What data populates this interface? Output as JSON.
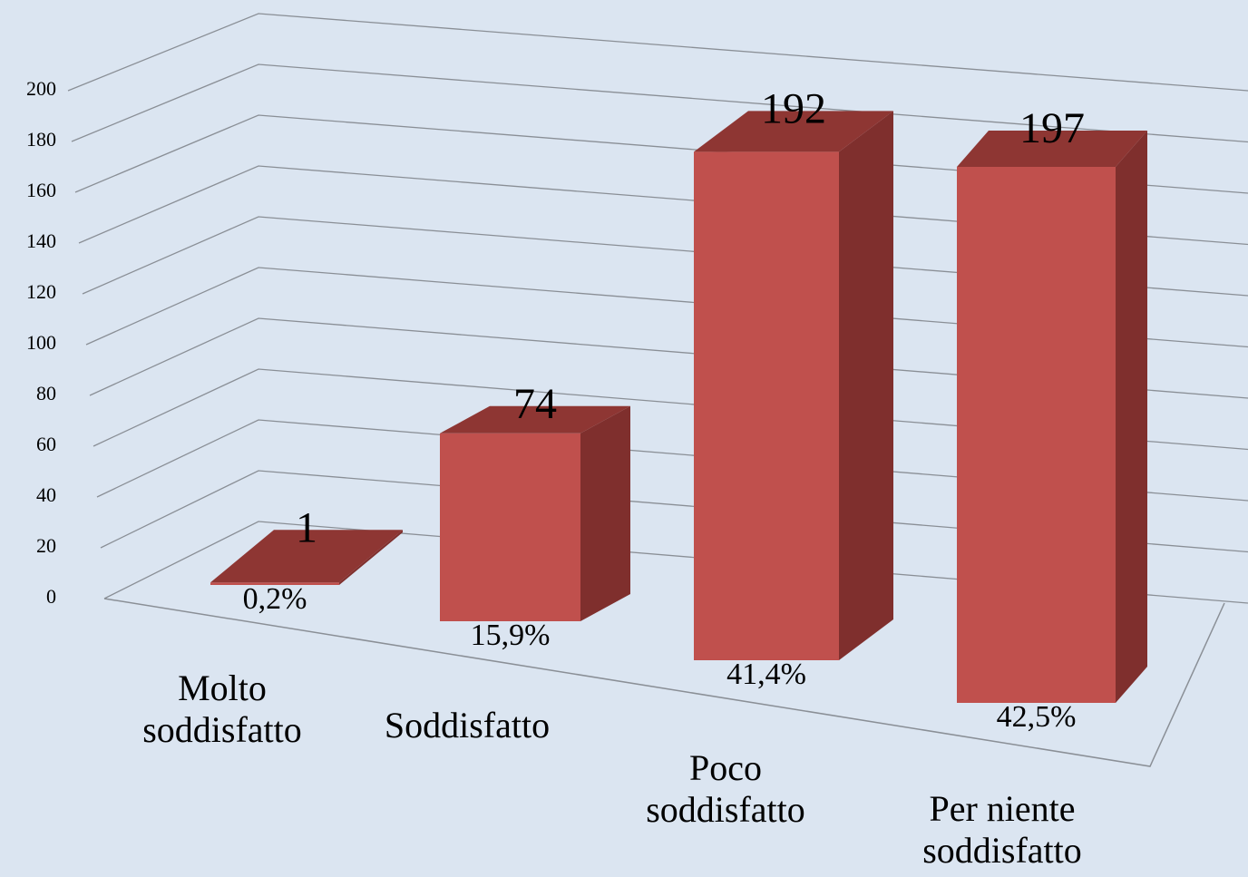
{
  "chart_data": {
    "type": "bar3d",
    "categories": [
      "Molto soddisfatto",
      "Soddisfatto",
      "Poco soddisfatto",
      "Per niente soddisfatto"
    ],
    "values": [
      1,
      74,
      192,
      197
    ],
    "share_labels": [
      "0,2%",
      "15,9%",
      "41,4%",
      "42,5%"
    ],
    "color": "#c0504d",
    "ylim": [
      0,
      200
    ],
    "yticks": [
      0,
      20,
      40,
      60,
      80,
      100,
      120,
      140,
      160,
      180,
      200
    ],
    "grid": true
  }
}
